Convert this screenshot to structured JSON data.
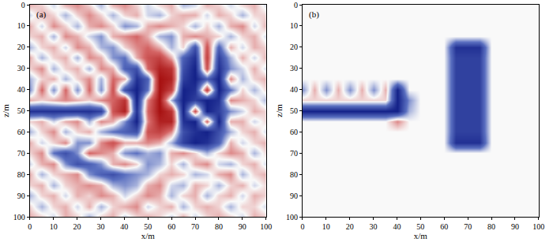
{
  "chart_data": [
    {
      "type": "heatmap",
      "title": "(a)",
      "x_label": "x/m",
      "y_label": "z/m",
      "xlim": [
        0,
        100
      ],
      "ylim": [
        100,
        0
      ],
      "xticks": [
        0,
        10,
        20,
        30,
        40,
        50,
        60,
        70,
        80,
        90,
        100
      ],
      "yticks": [
        0,
        10,
        20,
        30,
        40,
        50,
        60,
        70,
        80,
        90,
        100
      ],
      "zlim": [
        -1,
        1
      ],
      "x": [
        0,
        5,
        10,
        15,
        20,
        25,
        30,
        35,
        40,
        45,
        50,
        55,
        60,
        65,
        70,
        75,
        80,
        85,
        90,
        95,
        100
      ],
      "y": [
        0,
        5,
        10,
        15,
        20,
        25,
        30,
        35,
        40,
        45,
        50,
        55,
        60,
        65,
        70,
        75,
        80,
        85,
        90,
        95,
        100
      ],
      "z": [
        [
          0.2,
          0.1,
          -0.1,
          0.2,
          0.3,
          0.1,
          -0.2,
          0.2,
          0.3,
          0.1,
          -0.1,
          0.1,
          0.2,
          -0.2,
          -0.1,
          0.2,
          0.1,
          -0.1,
          0.1,
          0.2,
          -0.1
        ],
        [
          -0.1,
          0.2,
          0.1,
          -0.2,
          0.1,
          0.3,
          0.1,
          -0.2,
          0.1,
          0.2,
          -0.1,
          -0.2,
          0.1,
          0.2,
          0.2,
          -0.1,
          0.2,
          0.1,
          -0.2,
          0.1,
          0.1
        ],
        [
          0.2,
          -0.1,
          0.3,
          0.1,
          -0.2,
          0.2,
          0.3,
          0.1,
          -0.3,
          -0.2,
          0.2,
          0.3,
          0.2,
          0.1,
          -0.2,
          0.1,
          -0.2,
          0.2,
          0.3,
          -0.1,
          0.2
        ],
        [
          0.1,
          0.2,
          -0.2,
          0.3,
          0.2,
          -0.1,
          -0.3,
          0.2,
          0.3,
          0.4,
          0.2,
          -0.2,
          -0.3,
          0.2,
          0.3,
          0.2,
          0.1,
          -0.2,
          0.1,
          0.2,
          -0.1
        ],
        [
          -0.2,
          0.1,
          0.2,
          -0.1,
          0.3,
          0.2,
          -0.2,
          -0.3,
          0.1,
          0.3,
          0.4,
          0.2,
          -0.2,
          0.1,
          -0.6,
          0.5,
          -0.5,
          0.2,
          -0.1,
          0.2,
          0.1
        ],
        [
          0.2,
          -0.2,
          0.1,
          0.2,
          -0.2,
          0.3,
          0.2,
          -0.3,
          -0.4,
          0.2,
          0.5,
          0.6,
          0.2,
          -0.5,
          -0.8,
          0.6,
          -0.7,
          -0.2,
          0.2,
          -0.1,
          0.2
        ],
        [
          0.1,
          0.3,
          -0.2,
          0.1,
          0.2,
          -0.2,
          0.3,
          0.2,
          -0.5,
          -0.6,
          0.4,
          0.8,
          0.7,
          -0.6,
          -0.9,
          0.5,
          -0.8,
          -0.3,
          -0.1,
          0.2,
          -0.1
        ],
        [
          -0.2,
          0.1,
          0.2,
          -0.2,
          0.1,
          0.3,
          -0.2,
          0.4,
          0.2,
          -0.8,
          -0.5,
          0.9,
          0.8,
          -0.7,
          -0.9,
          -0.5,
          -0.9,
          0.3,
          -0.2,
          0.1,
          0.2
        ],
        [
          -0.3,
          0.4,
          -0.3,
          0.4,
          -0.3,
          0.4,
          -0.3,
          0.5,
          -0.6,
          -0.9,
          -0.4,
          0.9,
          0.6,
          -0.9,
          -0.8,
          0.6,
          -0.9,
          -0.4,
          0.1,
          -0.2,
          0.1
        ],
        [
          0.2,
          0.1,
          0.2,
          0.3,
          0.2,
          0.1,
          0.3,
          0.4,
          0.7,
          -0.9,
          0.3,
          0.9,
          -0.2,
          -0.9,
          -0.7,
          -0.9,
          -0.8,
          0.3,
          0.2,
          0.1,
          -0.2
        ],
        [
          -0.8,
          -0.8,
          -0.8,
          -0.8,
          -0.8,
          -0.8,
          -0.7,
          0.5,
          0.8,
          -0.8,
          0.4,
          0.9,
          0.7,
          -0.9,
          0.5,
          -0.9,
          -0.7,
          -0.3,
          -0.1,
          0.2,
          0.1
        ],
        [
          0.1,
          0.2,
          -0.1,
          0.2,
          0.3,
          -0.2,
          0.3,
          0.2,
          -0.3,
          -0.9,
          0.3,
          0.8,
          0.8,
          -0.8,
          -0.9,
          0.4,
          -0.9,
          0.2,
          0.2,
          -0.1,
          0.1
        ],
        [
          -0.2,
          0.1,
          0.3,
          -0.2,
          0.1,
          0.2,
          -0.2,
          -0.4,
          -0.5,
          -0.6,
          0.5,
          0.6,
          0.3,
          -0.6,
          -0.8,
          -0.9,
          -0.6,
          -0.2,
          0.1,
          0.2,
          -0.1
        ],
        [
          0.2,
          -0.1,
          0.1,
          0.3,
          -0.3,
          -0.3,
          0.3,
          0.5,
          0.2,
          0.2,
          0.3,
          0.2,
          -0.2,
          -0.7,
          -0.9,
          -0.8,
          -0.5,
          0.2,
          -0.1,
          0.1,
          0.2
        ],
        [
          0.1,
          0.3,
          -0.4,
          -0.6,
          -0.3,
          0.4,
          0.3,
          0.2,
          -0.3,
          -0.4,
          -0.2,
          -0.3,
          0.2,
          0.3,
          0.1,
          -0.2,
          0.1,
          0.3,
          0.2,
          -0.2,
          0.1
        ],
        [
          -0.1,
          0.2,
          0.3,
          -0.3,
          -0.6,
          -0.5,
          -0.3,
          0.2,
          0.3,
          0.1,
          -0.3,
          -0.2,
          0.1,
          -0.2,
          0.2,
          0.3,
          -0.1,
          -0.2,
          0.1,
          0.2,
          -0.1
        ],
        [
          0.2,
          -0.2,
          0.1,
          0.2,
          0.3,
          -0.3,
          -0.5,
          -0.6,
          -0.4,
          -0.3,
          -0.2,
          0.1,
          0.2,
          0.1,
          -0.2,
          -0.1,
          0.2,
          0.3,
          -0.2,
          0.1,
          0.2
        ],
        [
          0.1,
          0.2,
          -0.2,
          0.1,
          0.2,
          0.3,
          0.2,
          -0.2,
          -0.3,
          -0.2,
          0.2,
          0.3,
          -0.1,
          -0.2,
          0.2,
          0.1,
          -0.2,
          0.1,
          0.2,
          -0.1,
          0.1
        ],
        [
          -0.2,
          0.1,
          0.2,
          -0.1,
          0.2,
          0.1,
          0.3,
          0.2,
          -0.1,
          0.1,
          0.3,
          0.2,
          -0.2,
          0.1,
          0.2,
          -0.2,
          0.1,
          0.2,
          -0.1,
          0.2,
          0.1
        ],
        [
          0.1,
          -0.2,
          0.1,
          0.2,
          -0.1,
          0.2,
          -0.2,
          0.1,
          0.2,
          0.3,
          -0.1,
          0.1,
          0.2,
          -0.2,
          0.1,
          0.2,
          0.1,
          -0.2,
          0.1,
          0.1,
          -0.1
        ],
        [
          0.2,
          0.1,
          -0.1,
          0.2,
          0.1,
          -0.2,
          0.1,
          0.2,
          -0.1,
          0.1,
          0.2,
          0.1,
          -0.1,
          0.2,
          -0.1,
          0.1,
          0.2,
          0.1,
          -0.1,
          0.2,
          0.1
        ]
      ]
    },
    {
      "type": "heatmap",
      "title": "(b)",
      "x_label": "x/m",
      "y_label": "z/m",
      "xlim": [
        0,
        100
      ],
      "ylim": [
        100,
        0
      ],
      "xticks": [
        0,
        10,
        20,
        30,
        40,
        50,
        60,
        70,
        80,
        90,
        100
      ],
      "yticks": [
        0,
        10,
        20,
        30,
        40,
        50,
        60,
        70,
        80,
        90,
        100
      ],
      "zlim": [
        -1,
        1
      ],
      "x": [
        0,
        5,
        10,
        15,
        20,
        25,
        30,
        35,
        40,
        45,
        50,
        55,
        60,
        65,
        70,
        75,
        80,
        85,
        90,
        95,
        100
      ],
      "y": [
        0,
        5,
        10,
        15,
        20,
        25,
        30,
        35,
        40,
        45,
        50,
        55,
        60,
        65,
        70,
        75,
        80,
        85,
        90,
        95,
        100
      ],
      "z": [
        [
          0,
          0,
          0,
          0,
          0,
          0,
          0,
          0,
          0,
          0,
          0,
          0,
          0,
          0,
          0,
          0,
          0,
          0,
          0,
          0,
          0
        ],
        [
          0,
          0,
          0,
          0,
          0,
          0,
          0,
          0,
          0,
          0,
          0,
          0,
          0,
          0,
          0,
          0,
          0,
          0,
          0,
          0,
          0
        ],
        [
          0,
          0,
          0,
          0,
          0,
          0,
          0,
          0,
          0,
          0,
          0,
          0,
          0,
          0,
          0,
          0,
          0,
          0,
          0,
          0,
          0
        ],
        [
          0,
          0,
          0,
          0,
          0,
          0,
          0,
          0,
          0,
          0,
          0,
          0,
          0,
          0,
          0,
          0,
          0,
          0,
          0,
          0,
          0
        ],
        [
          0,
          0,
          0,
          0,
          0,
          0,
          0,
          0,
          0,
          0,
          0,
          0,
          0,
          -0.8,
          -0.8,
          -0.8,
          0,
          0,
          0,
          0,
          0
        ],
        [
          0,
          0,
          0,
          0,
          0,
          0,
          0,
          0,
          0,
          0,
          0,
          0,
          0,
          -0.7,
          -0.7,
          -0.7,
          0,
          0,
          0,
          0,
          0
        ],
        [
          0,
          0,
          0,
          0,
          0,
          0,
          0,
          0,
          0,
          0,
          0,
          0,
          0,
          -0.7,
          -0.7,
          -0.7,
          0,
          0,
          0,
          0,
          0
        ],
        [
          0,
          0,
          0,
          0,
          0,
          0,
          0,
          0,
          0,
          0,
          0,
          0,
          0,
          -0.7,
          -0.7,
          -0.7,
          0,
          0,
          0,
          0,
          0
        ],
        [
          -0.3,
          0.2,
          -0.3,
          0.2,
          -0.3,
          0.2,
          -0.3,
          0.2,
          -0.9,
          0,
          0,
          0,
          0,
          -0.7,
          -0.7,
          -0.7,
          0,
          0,
          0,
          0,
          0
        ],
        [
          0.1,
          0.1,
          0.1,
          0.1,
          0.1,
          0.1,
          0.1,
          0.1,
          -0.9,
          -0.3,
          0,
          0,
          0,
          -0.7,
          -0.7,
          -0.7,
          0,
          0,
          0,
          0,
          0
        ],
        [
          -0.9,
          -0.9,
          -0.9,
          -0.9,
          -0.9,
          -0.9,
          -0.9,
          -0.9,
          -0.9,
          -0.2,
          0,
          0,
          0,
          -0.7,
          -0.7,
          -0.7,
          0,
          0,
          0,
          0,
          0
        ],
        [
          0,
          0,
          0,
          0,
          0,
          0,
          0,
          0,
          0.3,
          0,
          0,
          0,
          0,
          -0.7,
          -0.7,
          -0.7,
          0,
          0,
          0,
          0,
          0
        ],
        [
          0,
          0,
          0,
          0,
          0,
          0,
          0,
          0,
          0,
          0,
          0,
          0,
          0,
          -0.7,
          -0.7,
          -0.7,
          0,
          0,
          0,
          0,
          0
        ],
        [
          0,
          0,
          0,
          0,
          0,
          0,
          0,
          0,
          0,
          0,
          0,
          0,
          0,
          -0.8,
          -0.8,
          -0.8,
          0,
          0,
          0,
          0,
          0
        ],
        [
          0,
          0,
          0,
          0,
          0,
          0,
          0,
          0,
          0,
          0,
          0,
          0,
          0,
          0,
          0,
          0,
          0,
          0,
          0,
          0,
          0
        ],
        [
          0,
          0,
          0,
          0,
          0,
          0,
          0,
          0,
          0,
          0,
          0,
          0,
          0,
          0,
          0,
          0,
          0,
          0,
          0,
          0,
          0
        ],
        [
          0,
          0,
          0,
          0,
          0,
          0,
          0,
          0,
          0,
          0,
          0,
          0,
          0,
          0,
          0,
          0,
          0,
          0,
          0,
          0,
          0
        ],
        [
          0,
          0,
          0,
          0,
          0,
          0,
          0,
          0,
          0,
          0,
          0,
          0,
          0,
          0,
          0,
          0,
          0,
          0,
          0,
          0,
          0
        ],
        [
          0,
          0,
          0,
          0,
          0,
          0,
          0,
          0,
          0,
          0,
          0,
          0,
          0,
          0,
          0,
          0,
          0,
          0,
          0,
          0,
          0
        ],
        [
          0,
          0,
          0,
          0,
          0,
          0,
          0,
          0,
          0,
          0,
          0,
          0,
          0,
          0,
          0,
          0,
          0,
          0,
          0,
          0,
          0
        ],
        [
          0,
          0,
          0,
          0,
          0,
          0,
          0,
          0,
          0,
          0,
          0,
          0,
          0,
          0,
          0,
          0,
          0,
          0,
          0,
          0,
          0
        ]
      ]
    }
  ]
}
